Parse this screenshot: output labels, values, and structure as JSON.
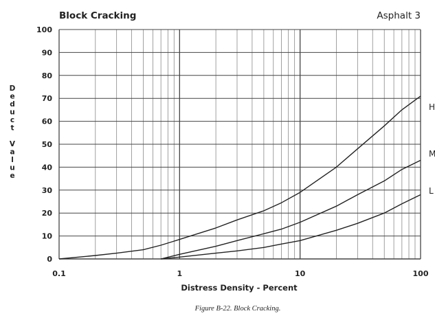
{
  "chart_data": {
    "type": "line",
    "title": "Block Cracking",
    "subtitle": "Asphalt 3",
    "xlabel": "Distress Density - Percent",
    "ylabel": "Deduct Value",
    "xscale": "log",
    "xlim": [
      0.1,
      100
    ],
    "ylim": [
      0,
      100
    ],
    "x_tick_labels": [
      "0.1",
      "1",
      "10",
      "100"
    ],
    "y_tick_labels": [
      "0",
      "10",
      "20",
      "30",
      "40",
      "50",
      "60",
      "70",
      "80",
      "90",
      "100"
    ],
    "grid": true,
    "caption": "Figure B-22. Block Cracking.",
    "series": [
      {
        "name": "H",
        "x": [
          0.1,
          0.2,
          0.3,
          0.5,
          0.7,
          1,
          2,
          3,
          5,
          7,
          10,
          20,
          30,
          50,
          70,
          100
        ],
        "y": [
          0,
          1.5,
          2.5,
          4,
          6,
          8.5,
          13.5,
          17,
          21,
          24.5,
          29,
          40,
          48,
          58,
          65,
          71
        ]
      },
      {
        "name": "M",
        "x": [
          0.7,
          1,
          2,
          3,
          5,
          7,
          10,
          20,
          30,
          50,
          70,
          100
        ],
        "y": [
          0,
          2,
          5.5,
          8,
          11,
          13,
          16,
          23,
          28,
          34,
          39,
          43
        ]
      },
      {
        "name": "L",
        "x": [
          0.7,
          1,
          2,
          3,
          5,
          7,
          10,
          20,
          30,
          50,
          70,
          100
        ],
        "y": [
          0,
          0.8,
          2.5,
          3.5,
          5,
          6.5,
          8,
          12.5,
          15.5,
          20,
          24,
          28
        ]
      }
    ]
  }
}
